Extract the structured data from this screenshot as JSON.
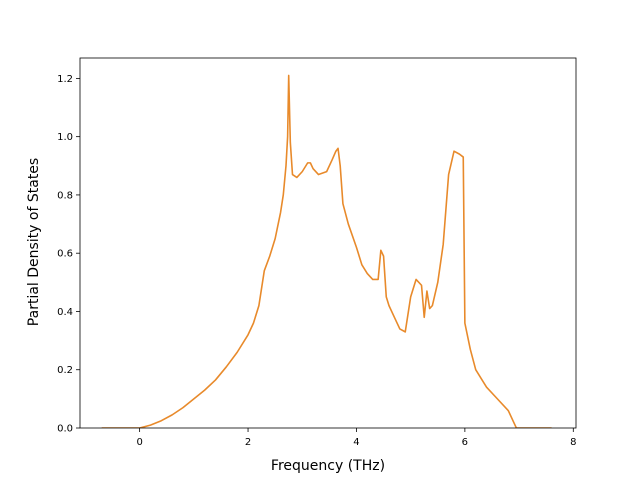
{
  "chart_data": {
    "type": "line",
    "xlabel": "Frequency (THz)",
    "ylabel": "Partial Density of States",
    "xlim": [
      -1.1,
      8.05
    ],
    "ylim": [
      0.0,
      1.27
    ],
    "x_ticks": [
      0,
      2,
      4,
      6,
      8
    ],
    "y_ticks": [
      0.0,
      0.2,
      0.4,
      0.6,
      0.8,
      1.0,
      1.2
    ],
    "x_tick_labels": [
      "0",
      "2",
      "4",
      "6",
      "8"
    ],
    "y_tick_labels": [
      "0.0",
      "0.2",
      "0.4",
      "0.6",
      "0.8",
      "1.0",
      "1.2"
    ],
    "grid": false,
    "series": [
      {
        "color": "#e88a2b",
        "x": [
          -0.7,
          0.0,
          0.2,
          0.4,
          0.6,
          0.8,
          1.0,
          1.2,
          1.4,
          1.6,
          1.8,
          2.0,
          2.1,
          2.2,
          2.3,
          2.4,
          2.5,
          2.6,
          2.65,
          2.7,
          2.73,
          2.75,
          2.78,
          2.82,
          2.9,
          3.0,
          3.1,
          3.15,
          3.2,
          3.3,
          3.45,
          3.55,
          3.62,
          3.66,
          3.7,
          3.75,
          3.85,
          4.0,
          4.1,
          4.2,
          4.3,
          4.4,
          4.45,
          4.5,
          4.55,
          4.6,
          4.7,
          4.8,
          4.9,
          5.0,
          5.1,
          5.2,
          5.25,
          5.3,
          5.35,
          5.4,
          5.5,
          5.6,
          5.7,
          5.8,
          5.9,
          5.97,
          6.0,
          6.1,
          6.2,
          6.4,
          6.6,
          6.8,
          6.9,
          6.95,
          7.2,
          7.6
        ],
        "y": [
          0.0,
          0.0,
          0.01,
          0.025,
          0.045,
          0.07,
          0.1,
          0.13,
          0.165,
          0.21,
          0.26,
          0.32,
          0.36,
          0.42,
          0.54,
          0.59,
          0.65,
          0.74,
          0.8,
          0.9,
          1.0,
          1.21,
          0.98,
          0.87,
          0.86,
          0.88,
          0.91,
          0.91,
          0.89,
          0.87,
          0.88,
          0.92,
          0.95,
          0.96,
          0.9,
          0.77,
          0.7,
          0.62,
          0.56,
          0.53,
          0.51,
          0.51,
          0.61,
          0.59,
          0.45,
          0.42,
          0.38,
          0.34,
          0.33,
          0.45,
          0.51,
          0.49,
          0.38,
          0.47,
          0.41,
          0.42,
          0.5,
          0.63,
          0.87,
          0.95,
          0.94,
          0.93,
          0.36,
          0.27,
          0.2,
          0.14,
          0.1,
          0.06,
          0.02,
          0.0,
          0.0,
          0.0
        ]
      }
    ]
  }
}
